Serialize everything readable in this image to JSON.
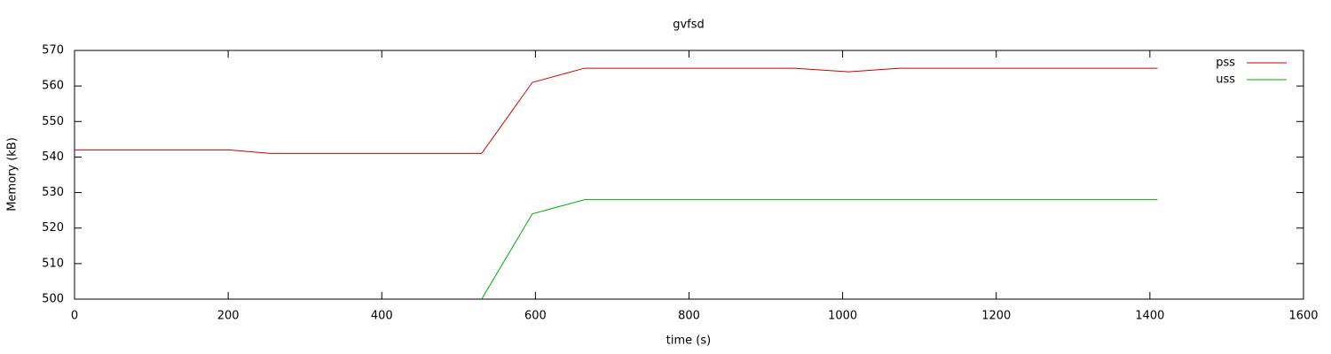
{
  "chart_data": {
    "type": "line",
    "title": "gvfsd",
    "x_label": "time (s)",
    "y_label": "Memory (kB)",
    "xlim": [
      0,
      1600
    ],
    "xticks": [
      0,
      200,
      400,
      600,
      800,
      1000,
      1200,
      1400,
      1600
    ],
    "ylim": [
      500,
      570
    ],
    "yticks": [
      500,
      510,
      520,
      530,
      540,
      550,
      560,
      570
    ],
    "legend": "upper-right",
    "series": [
      {
        "name": "pss",
        "color": "#cc0000",
        "x": [
          0,
          201,
          255,
          530,
          596,
          664,
          937,
          1008,
          1074,
          1410
        ],
        "values": [
          542,
          542,
          541,
          541,
          561,
          565,
          565,
          564,
          565,
          565
        ]
      },
      {
        "name": "uss",
        "color": "#00aa00",
        "x": [
          530,
          596,
          664,
          1410
        ],
        "values": [
          500,
          524,
          528,
          528
        ]
      }
    ]
  }
}
